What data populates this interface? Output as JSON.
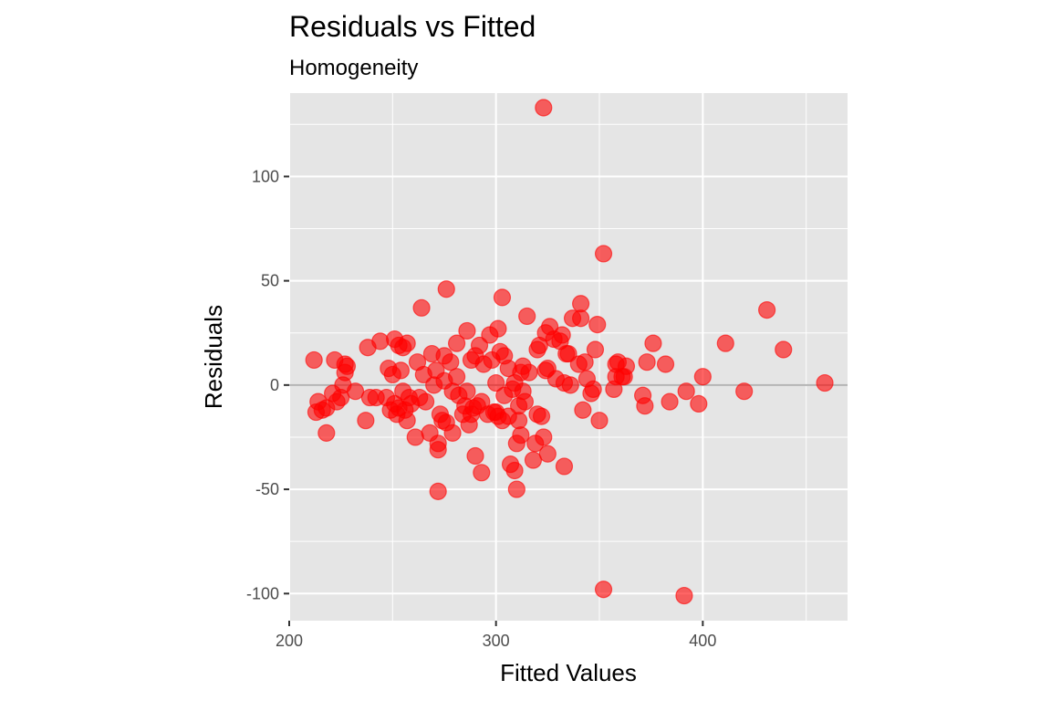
{
  "chart_data": {
    "type": "scatter",
    "title": "Residuals vs Fitted",
    "subtitle": "Homogeneity",
    "xlabel": "Fitted Values",
    "ylabel": "Residuals",
    "xlim": [
      200,
      470
    ],
    "ylim": [
      -113,
      140
    ],
    "x_ticks": [
      200,
      300,
      400
    ],
    "y_ticks": [
      -100,
      -50,
      0,
      50,
      100
    ],
    "x_tick_labels": [
      "200",
      "300",
      "400"
    ],
    "y_tick_labels": [
      "-100",
      "-50",
      "0",
      "50",
      "100"
    ],
    "grid": true,
    "reference_line_y": 0,
    "colors": {
      "panel": "#e5e5e5",
      "grid": "#ffffff",
      "point": "#ff0000",
      "reference_line": "#b3b3b3"
    },
    "points": [
      [
        212,
        12
      ],
      [
        213,
        -13
      ],
      [
        214,
        -8
      ],
      [
        216,
        -12
      ],
      [
        218,
        -11
      ],
      [
        218,
        -23
      ],
      [
        221,
        -4
      ],
      [
        222,
        12
      ],
      [
        223,
        -8
      ],
      [
        225,
        -6
      ],
      [
        226,
        0
      ],
      [
        227,
        10
      ],
      [
        227,
        6
      ],
      [
        228,
        9
      ],
      [
        232,
        -3
      ],
      [
        237,
        -17
      ],
      [
        238,
        18
      ],
      [
        239,
        -6
      ],
      [
        242,
        -6
      ],
      [
        244,
        21
      ],
      [
        247,
        -6
      ],
      [
        248,
        8
      ],
      [
        249,
        -12
      ],
      [
        250,
        5
      ],
      [
        251,
        22
      ],
      [
        251,
        -9
      ],
      [
        252,
        -14
      ],
      [
        253,
        19
      ],
      [
        253,
        -11
      ],
      [
        254,
        7
      ],
      [
        255,
        18
      ],
      [
        255,
        -3
      ],
      [
        256,
        -12
      ],
      [
        257,
        -17
      ],
      [
        257,
        20
      ],
      [
        258,
        -6
      ],
      [
        259,
        -9
      ],
      [
        261,
        -25
      ],
      [
        262,
        11
      ],
      [
        263,
        -6
      ],
      [
        264,
        37
      ],
      [
        265,
        5
      ],
      [
        266,
        -8
      ],
      [
        268,
        -23
      ],
      [
        269,
        15
      ],
      [
        270,
        0
      ],
      [
        271,
        7
      ],
      [
        272,
        -31
      ],
      [
        272,
        -28
      ],
      [
        272,
        -51
      ],
      [
        273,
        -14
      ],
      [
        274,
        -17
      ],
      [
        275,
        14
      ],
      [
        275,
        2
      ],
      [
        276,
        46
      ],
      [
        276,
        -18
      ],
      [
        278,
        11
      ],
      [
        279,
        -3
      ],
      [
        279,
        -23
      ],
      [
        281,
        4
      ],
      [
        281,
        20
      ],
      [
        282,
        -5
      ],
      [
        284,
        -14
      ],
      [
        285,
        -10
      ],
      [
        286,
        -3
      ],
      [
        286,
        26
      ],
      [
        287,
        -19
      ],
      [
        288,
        -14
      ],
      [
        288,
        12
      ],
      [
        289,
        -11
      ],
      [
        290,
        -34
      ],
      [
        290,
        14
      ],
      [
        291,
        -10
      ],
      [
        292,
        19
      ],
      [
        293,
        -8
      ],
      [
        293,
        -42
      ],
      [
        294,
        10
      ],
      [
        296,
        -14
      ],
      [
        297,
        24
      ],
      [
        298,
        12
      ],
      [
        299,
        -13
      ],
      [
        300,
        1
      ],
      [
        300,
        -13
      ],
      [
        301,
        -15
      ],
      [
        301,
        27
      ],
      [
        302,
        16
      ],
      [
        303,
        42
      ],
      [
        303,
        -17
      ],
      [
        304,
        14
      ],
      [
        304,
        -5
      ],
      [
        306,
        8
      ],
      [
        306,
        -15
      ],
      [
        307,
        -38
      ],
      [
        308,
        -2
      ],
      [
        309,
        -41
      ],
      [
        309,
        1
      ],
      [
        310,
        -28
      ],
      [
        310,
        -50
      ],
      [
        311,
        -17
      ],
      [
        311,
        -10
      ],
      [
        312,
        6
      ],
      [
        312,
        -24
      ],
      [
        313,
        9
      ],
      [
        313,
        -3
      ],
      [
        314,
        -8
      ],
      [
        315,
        33
      ],
      [
        316,
        6
      ],
      [
        318,
        -36
      ],
      [
        319,
        -28
      ],
      [
        320,
        17
      ],
      [
        320,
        -14
      ],
      [
        321,
        19
      ],
      [
        322,
        -15
      ],
      [
        323,
        133
      ],
      [
        323,
        -25
      ],
      [
        324,
        25
      ],
      [
        324,
        7
      ],
      [
        325,
        8
      ],
      [
        325,
        -33
      ],
      [
        326,
        28
      ],
      [
        328,
        22
      ],
      [
        329,
        3
      ],
      [
        331,
        21
      ],
      [
        332,
        24
      ],
      [
        333,
        -39
      ],
      [
        333,
        1
      ],
      [
        334,
        15
      ],
      [
        335,
        15
      ],
      [
        336,
        0
      ],
      [
        337,
        32
      ],
      [
        340,
        10
      ],
      [
        341,
        39
      ],
      [
        341,
        32
      ],
      [
        342,
        -12
      ],
      [
        343,
        11
      ],
      [
        344,
        3
      ],
      [
        346,
        -4
      ],
      [
        347,
        -2
      ],
      [
        348,
        17
      ],
      [
        349,
        29
      ],
      [
        350,
        -17
      ],
      [
        352,
        63
      ],
      [
        352,
        -98
      ],
      [
        357,
        -2
      ],
      [
        358,
        10
      ],
      [
        358,
        4
      ],
      [
        359,
        11
      ],
      [
        361,
        4
      ],
      [
        362,
        4
      ],
      [
        363,
        9
      ],
      [
        371,
        -5
      ],
      [
        372,
        -10
      ],
      [
        373,
        11
      ],
      [
        376,
        20
      ],
      [
        382,
        10
      ],
      [
        384,
        -8
      ],
      [
        391,
        -101
      ],
      [
        392,
        -3
      ],
      [
        398,
        -9
      ],
      [
        400,
        4
      ],
      [
        411,
        20
      ],
      [
        420,
        -3
      ],
      [
        431,
        36
      ],
      [
        439,
        17
      ],
      [
        459,
        1
      ]
    ]
  }
}
